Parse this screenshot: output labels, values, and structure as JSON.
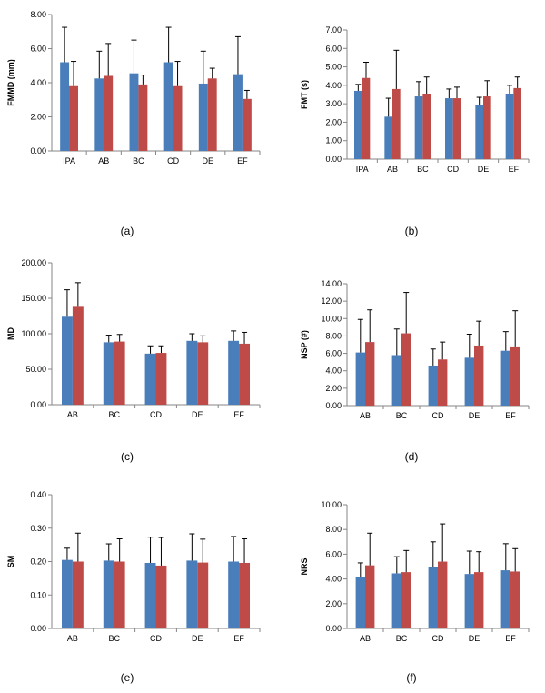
{
  "colors": {
    "series1": "#4a7ebb",
    "series2": "#be4b48",
    "error": "#000000"
  },
  "chart_data": [
    {
      "type": "bar",
      "panel_label": "(a)",
      "ylabel": "FMMD (mm)",
      "categories": [
        "IPA",
        "AB",
        "BC",
        "CD",
        "DE",
        "EF"
      ],
      "series": [
        {
          "values": [
            5.2,
            4.25,
            4.55,
            5.2,
            3.95,
            4.5
          ],
          "errors": [
            2.05,
            1.6,
            1.95,
            2.05,
            1.9,
            2.2
          ]
        },
        {
          "values": [
            3.8,
            4.4,
            3.9,
            3.8,
            4.25,
            3.05
          ],
          "errors": [
            1.45,
            1.9,
            0.55,
            1.45,
            0.6,
            0.5
          ]
        }
      ],
      "ylim": [
        0,
        8
      ],
      "yticks": [
        "0.00",
        "2.00",
        "4.00",
        "6.00",
        "8.00"
      ]
    },
    {
      "type": "bar",
      "panel_label": "(b)",
      "ylabel": "FMT (s)",
      "categories": [
        "IPA",
        "AB",
        "BC",
        "CD",
        "DE",
        "EF"
      ],
      "series": [
        {
          "values": [
            3.7,
            2.3,
            3.4,
            3.3,
            2.95,
            3.55
          ],
          "errors": [
            0.35,
            1.0,
            0.8,
            0.5,
            0.4,
            0.45
          ]
        },
        {
          "values": [
            4.4,
            3.8,
            3.55,
            3.3,
            3.4,
            3.85
          ],
          "errors": [
            0.85,
            2.1,
            0.9,
            0.6,
            0.85,
            0.6
          ]
        }
      ],
      "ylim": [
        0,
        7
      ],
      "yticks": [
        "0.00",
        "1.00",
        "2.00",
        "3.00",
        "4.00",
        "5.00",
        "6.00",
        "7.00"
      ]
    },
    {
      "type": "bar",
      "panel_label": "(c)",
      "ylabel": "MD",
      "categories": [
        "AB",
        "BC",
        "CD",
        "DE",
        "EF"
      ],
      "series": [
        {
          "values": [
            124,
            88,
            72,
            90,
            90
          ],
          "errors": [
            38,
            10,
            11,
            10,
            14
          ]
        },
        {
          "values": [
            138,
            89,
            73,
            88,
            86
          ],
          "errors": [
            34,
            10,
            10,
            9,
            16
          ]
        }
      ],
      "ylim": [
        0,
        200
      ],
      "yticks": [
        "0.00",
        "50.00",
        "100.00",
        "150.00",
        "200.00"
      ]
    },
    {
      "type": "bar",
      "panel_label": "(d)",
      "ylabel": "NSP (#)",
      "categories": [
        "AB",
        "BC",
        "CD",
        "DE",
        "EF"
      ],
      "series": [
        {
          "values": [
            6.1,
            5.8,
            4.6,
            5.5,
            6.3
          ],
          "errors": [
            3.8,
            3.0,
            1.9,
            2.7,
            2.2
          ]
        },
        {
          "values": [
            7.3,
            8.3,
            5.3,
            6.9,
            6.8
          ],
          "errors": [
            3.7,
            4.7,
            2.0,
            2.8,
            4.1
          ]
        }
      ],
      "ylim": [
        0,
        14
      ],
      "yticks": [
        "0.00",
        "2.00",
        "4.00",
        "6.00",
        "8.00",
        "10.00",
        "12.00",
        "14.00"
      ]
    },
    {
      "type": "bar",
      "panel_label": "(e)",
      "ylabel": "SM",
      "categories": [
        "AB",
        "BC",
        "CD",
        "DE",
        "EF"
      ],
      "series": [
        {
          "values": [
            0.205,
            0.203,
            0.196,
            0.203,
            0.2
          ],
          "errors": [
            0.035,
            0.05,
            0.077,
            0.08,
            0.075
          ]
        },
        {
          "values": [
            0.2,
            0.2,
            0.188,
            0.197,
            0.196
          ],
          "errors": [
            0.085,
            0.068,
            0.084,
            0.07,
            0.072
          ]
        }
      ],
      "ylim": [
        0,
        0.4
      ],
      "yticks": [
        "0.00",
        "0.10",
        "0.20",
        "0.30",
        "0.40"
      ]
    },
    {
      "type": "bar",
      "panel_label": "(f)",
      "ylabel": "NRS",
      "categories": [
        "AB",
        "BC",
        "CD",
        "DE",
        "EF"
      ],
      "series": [
        {
          "values": [
            4.15,
            4.45,
            5.0,
            4.4,
            4.7
          ],
          "errors": [
            1.15,
            1.35,
            2.0,
            1.85,
            2.15
          ]
        },
        {
          "values": [
            5.1,
            4.55,
            5.4,
            4.55,
            4.6
          ],
          "errors": [
            2.6,
            1.75,
            3.05,
            1.65,
            1.85
          ]
        }
      ],
      "ylim": [
        0,
        10
      ],
      "yticks": [
        "0.00",
        "2.00",
        "4.00",
        "6.00",
        "8.00",
        "10.00"
      ]
    }
  ]
}
